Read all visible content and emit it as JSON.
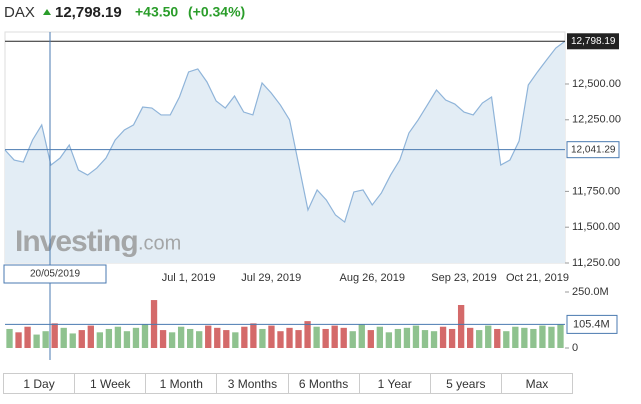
{
  "header": {
    "symbol": "DAX",
    "change": "+43.50",
    "change_pct": "(+0.34%)"
  },
  "watermark": [
    "Investing",
    ".com"
  ],
  "ranges": [
    "1 Day",
    "1 Week",
    "1 Month",
    "3 Months",
    "6 Months",
    "1 Year",
    "5 years",
    "Max"
  ],
  "chart_data": [
    {
      "type": "line",
      "color": "#8fb4d9",
      "fill": "#e3edf5",
      "categories": [
        null,
        null,
        null,
        null,
        null,
        null,
        null,
        null,
        null,
        null,
        null,
        null,
        null,
        null,
        null,
        null,
        null,
        null,
        null,
        null,
        "Jul 1, 2019",
        null,
        null,
        null,
        null,
        null,
        null,
        null,
        null,
        "Jul 29, 2019",
        null,
        null,
        null,
        null,
        null,
        null,
        null,
        null,
        null,
        null,
        "Aug 26, 2019",
        null,
        null,
        null,
        null,
        null,
        null,
        null,
        null,
        null,
        "Sep 23, 2019",
        null,
        null,
        null,
        null,
        null,
        null,
        null,
        "Oct 21, 2019",
        null,
        null,
        null
      ],
      "values": [
        12039,
        11969,
        11955,
        12109,
        12214,
        11934,
        11983,
        12074,
        11899,
        11864,
        11913,
        11983,
        12109,
        12179,
        12214,
        12339,
        12332,
        12284,
        12284,
        12409,
        12584,
        12605,
        12514,
        12381,
        12332,
        12416,
        12304,
        12284,
        12507,
        12437,
        12353,
        12249,
        11934,
        11620,
        11760,
        11690,
        11585,
        11536,
        11746,
        11760,
        11655,
        11739,
        11864,
        11969,
        12158,
        12249,
        12353,
        12458,
        12388,
        12360,
        12304,
        12284,
        12367,
        12409,
        11934,
        11969,
        12102,
        12493,
        12584,
        12668,
        12751,
        12798.19
      ],
      "ylim": [
        11250,
        12863
      ],
      "yticks": [
        {
          "value": 11250,
          "label": "11,250.00"
        },
        {
          "value": 11500,
          "label": "11,500.00"
        },
        {
          "value": 11750,
          "label": "11,750.00"
        },
        {
          "value": 12250,
          "label": "12,250.00"
        },
        {
          "value": 12500,
          "label": "12,500.00"
        }
      ],
      "last_price": {
        "value": 12798.19,
        "label": "12,798.19"
      },
      "crosshair": {
        "date": "20/05/2019",
        "price": {
          "value": 12041.29,
          "label": "12,041.29"
        }
      }
    },
    {
      "type": "bar",
      "up_color": "#8fc28f",
      "down_color": "#d46a6a",
      "values": [
        85000000,
        70000000,
        95000000,
        60000000,
        75000000,
        110000000,
        90000000,
        65000000,
        80000000,
        100000000,
        70000000,
        85000000,
        95000000,
        75000000,
        90000000,
        105000000,
        214000000,
        80000000,
        70000000,
        95000000,
        85000000,
        75000000,
        100000000,
        90000000,
        80000000,
        70000000,
        95000000,
        110000000,
        85000000,
        100000000,
        75000000,
        90000000,
        80000000,
        120000000,
        95000000,
        85000000,
        100000000,
        90000000,
        75000000,
        105000000,
        80000000,
        95000000,
        70000000,
        85000000,
        90000000,
        100000000,
        80000000,
        75000000,
        95000000,
        85000000,
        192000000,
        90000000,
        80000000,
        100000000,
        85000000,
        75000000,
        95000000,
        90000000,
        85000000,
        100000000,
        95000000,
        105400000
      ],
      "ylim": [
        0,
        250000000
      ],
      "yticks": [
        0,
        {
          "value": 250000000,
          "label": "250.0M"
        }
      ],
      "last_volume": {
        "value": 105400000,
        "label": "105.4M"
      }
    }
  ]
}
